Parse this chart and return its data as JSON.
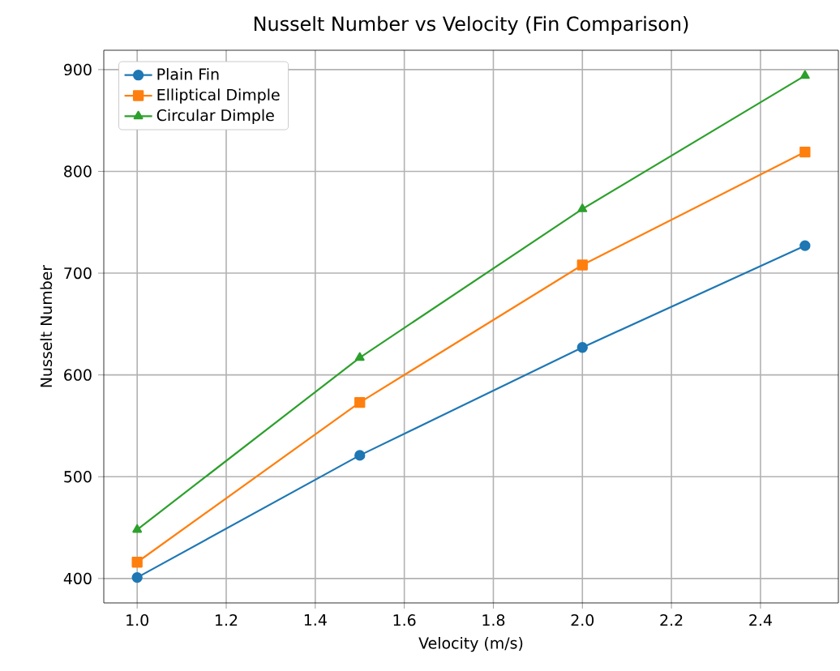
{
  "chart_data": {
    "type": "line",
    "title": "Nusselt Number vs Velocity (Fin Comparison)",
    "xlabel": "Velocity (m/s)",
    "ylabel": "Nusselt Number",
    "x": [
      1.0,
      1.5,
      2.0,
      2.5
    ],
    "series": [
      {
        "name": "Plain Fin",
        "color": "#1f77b4",
        "marker": "circle",
        "values": [
          401,
          521,
          627,
          727
        ]
      },
      {
        "name": "Elliptical Dimple",
        "color": "#ff7f0e",
        "marker": "square",
        "values": [
          416,
          573,
          708,
          819
        ]
      },
      {
        "name": "Circular Dimple",
        "color": "#2ca02c",
        "marker": "triangle",
        "values": [
          448,
          617,
          763,
          894
        ]
      }
    ],
    "xlim": [
      0.925,
      2.575
    ],
    "ylim": [
      376,
      919
    ],
    "xticks": [
      {
        "value": 1.0,
        "label": "1.0"
      },
      {
        "value": 1.2,
        "label": "1.2"
      },
      {
        "value": 1.4,
        "label": "1.4"
      },
      {
        "value": 1.6,
        "label": "1.6"
      },
      {
        "value": 1.8,
        "label": "1.8"
      },
      {
        "value": 2.0,
        "label": "2.0"
      },
      {
        "value": 2.2,
        "label": "2.2"
      },
      {
        "value": 2.4,
        "label": "2.4"
      }
    ],
    "yticks": [
      400,
      500,
      600,
      700,
      800,
      900
    ],
    "grid": true,
    "legend": "top left",
    "line_style": "solid"
  }
}
